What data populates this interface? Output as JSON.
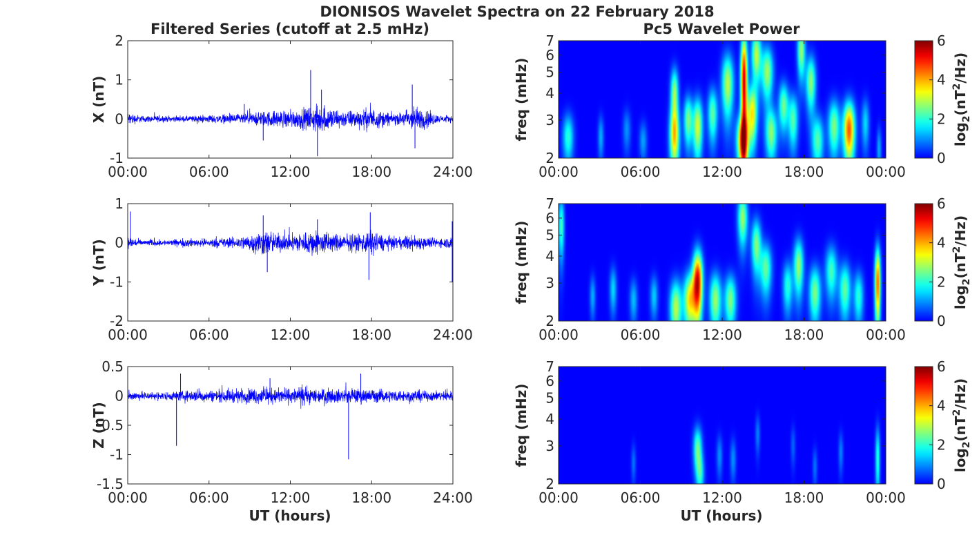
{
  "figure": {
    "title": "DIONISOS Wavelet Spectra on 22 February 2018",
    "left_title": "Filtered Series (cutoff at 2.5 mHz)",
    "right_title": "Pc5 Wavelet Power",
    "x_label": "UT (hours)"
  },
  "colorbar": {
    "label_main": "log",
    "label_sub": "2",
    "label_paren": "(nT",
    "label_sup": "2",
    "label_tail": "/Hz)",
    "ticks": [
      "0",
      "2",
      "4",
      "6"
    ],
    "colormap": "jet",
    "min_color": "#00008f",
    "max_color": "#800000"
  },
  "chart_data": [
    {
      "type": "line",
      "panel": "X",
      "ylabel": "X (nT)",
      "x_ticklabels": [
        "00:00",
        "06:00",
        "12:00",
        "18:00",
        "24:00"
      ],
      "x_range_hours": [
        0,
        24
      ],
      "ylim": [
        -1,
        2
      ],
      "y_ticklabels": [
        "2",
        "1",
        "0",
        "-1"
      ],
      "y_ticks": [
        2,
        1,
        0,
        -1
      ],
      "color": "#0000ff",
      "envelope": {
        "x_hours": [
          0,
          1,
          2,
          3,
          4,
          5,
          6,
          7,
          8,
          9,
          10,
          11,
          12,
          13,
          14,
          15,
          16,
          17,
          18,
          19,
          20,
          21,
          22,
          23,
          24
        ],
        "amplitude_nT": [
          0.25,
          0.12,
          0.12,
          0.1,
          0.1,
          0.12,
          0.14,
          0.16,
          0.18,
          0.2,
          0.28,
          0.3,
          0.32,
          0.38,
          0.48,
          0.42,
          0.3,
          0.34,
          0.4,
          0.25,
          0.2,
          0.45,
          0.35,
          0.12,
          0.12
        ]
      },
      "spikes": [
        {
          "x_hours": 13.5,
          "value_nT": 1.25
        },
        {
          "x_hours": 14.0,
          "value_nT": -0.95
        },
        {
          "x_hours": 21.0,
          "value_nT": 0.88
        },
        {
          "x_hours": 21.2,
          "value_nT": -0.75
        },
        {
          "x_hours": 8.6,
          "value_nT": 0.38
        },
        {
          "x_hours": 14.3,
          "value_nT": 0.75
        },
        {
          "x_hours": 10.0,
          "value_nT": -0.55
        }
      ]
    },
    {
      "type": "line",
      "panel": "Y",
      "ylabel": "Y (nT)",
      "x_ticklabels": [
        "00:00",
        "06:00",
        "12:00",
        "18:00",
        "24:00"
      ],
      "x_range_hours": [
        0,
        24
      ],
      "ylim": [
        -2,
        1
      ],
      "y_ticklabels": [
        "1",
        "0",
        "-1",
        "-2"
      ],
      "y_ticks": [
        1,
        0,
        -1,
        -2
      ],
      "color": "#0000ff",
      "envelope": {
        "x_hours": [
          0,
          1,
          2,
          3,
          4,
          5,
          6,
          7,
          8,
          9,
          10,
          11,
          12,
          13,
          14,
          15,
          16,
          17,
          18,
          19,
          20,
          21,
          22,
          23,
          24
        ],
        "amplitude_nT": [
          0.25,
          0.1,
          0.12,
          0.1,
          0.15,
          0.14,
          0.15,
          0.18,
          0.2,
          0.3,
          0.45,
          0.35,
          0.28,
          0.4,
          0.45,
          0.35,
          0.28,
          0.32,
          0.45,
          0.25,
          0.2,
          0.3,
          0.2,
          0.15,
          0.25
        ]
      },
      "spikes": [
        {
          "x_hours": 10.0,
          "value_nT": 0.7
        },
        {
          "x_hours": 10.3,
          "value_nT": -0.75
        },
        {
          "x_hours": 17.9,
          "value_nT": 0.78
        },
        {
          "x_hours": 17.8,
          "value_nT": -0.95
        },
        {
          "x_hours": 14.0,
          "value_nT": 0.6
        },
        {
          "x_hours": 0.2,
          "value_nT": 0.8
        },
        {
          "x_hours": 23.95,
          "value_nT": -1.0
        },
        {
          "x_hours": 23.95,
          "value_nT": 0.55
        }
      ]
    },
    {
      "type": "line",
      "panel": "Z",
      "ylabel": "Z (nT)",
      "x_ticklabels": [
        "00:00",
        "06:00",
        "12:00",
        "18:00",
        "24:00"
      ],
      "x_range_hours": [
        0,
        24
      ],
      "ylim": [
        -1.5,
        0.5
      ],
      "y_ticklabels": [
        "0.5",
        "0",
        "-0.5",
        "-1",
        "-1.5"
      ],
      "y_ticks": [
        0.5,
        0,
        -0.5,
        -1,
        -1.5
      ],
      "color": "#0000ff",
      "envelope": {
        "x_hours": [
          0,
          1,
          2,
          3,
          4,
          5,
          6,
          7,
          8,
          9,
          10,
          11,
          12,
          13,
          14,
          15,
          16,
          17,
          18,
          19,
          20,
          21,
          22,
          23,
          24
        ],
        "amplitude_nT": [
          0.12,
          0.1,
          0.1,
          0.1,
          0.12,
          0.14,
          0.14,
          0.15,
          0.16,
          0.18,
          0.2,
          0.18,
          0.18,
          0.2,
          0.18,
          0.17,
          0.16,
          0.18,
          0.17,
          0.15,
          0.14,
          0.14,
          0.13,
          0.12,
          0.12
        ]
      },
      "spikes": [
        {
          "x_hours": 3.6,
          "value_nT": -0.85
        },
        {
          "x_hours": 16.3,
          "value_nT": -1.08
        },
        {
          "x_hours": 3.9,
          "value_nT": 0.38
        },
        {
          "x_hours": 17.2,
          "value_nT": 0.38
        },
        {
          "x_hours": 10.5,
          "value_nT": 0.3
        }
      ]
    },
    {
      "type": "heatmap",
      "panel": "X",
      "ylabel": "freq (mHz)",
      "x_ticklabels": [
        "00:00",
        "06:00",
        "12:00",
        "18:00",
        "00:00"
      ],
      "x_range_hours": [
        0,
        24
      ],
      "y_scale": "log",
      "ylim": [
        2,
        7
      ],
      "y_ticklabels": [
        "7",
        "6",
        "5",
        "4",
        "3",
        "2"
      ],
      "y_ticks": [
        7,
        6,
        5,
        4,
        3,
        2
      ],
      "value_range": [
        0,
        6
      ],
      "blobs": [
        {
          "t": 0.7,
          "f": 2.5,
          "amp": 2.0,
          "w": 0.28,
          "h": 0.35
        },
        {
          "t": 3.1,
          "f": 2.5,
          "amp": 1.2,
          "w": 0.15,
          "h": 0.3
        },
        {
          "t": 5.0,
          "f": 2.7,
          "amp": 1.0,
          "w": 0.2,
          "h": 0.3
        },
        {
          "t": 6.2,
          "f": 2.4,
          "amp": 1.1,
          "w": 0.2,
          "h": 0.25
        },
        {
          "t": 8.5,
          "f": 2.5,
          "amp": 3.6,
          "w": 0.25,
          "h": 0.5
        },
        {
          "t": 8.5,
          "f": 4.0,
          "amp": 2.8,
          "w": 0.2,
          "h": 0.45
        },
        {
          "t": 9.5,
          "f": 3.0,
          "amp": 2.6,
          "w": 0.22,
          "h": 0.4
        },
        {
          "t": 10.2,
          "f": 2.8,
          "amp": 3.2,
          "w": 0.25,
          "h": 0.5
        },
        {
          "t": 11.3,
          "f": 3.2,
          "amp": 2.4,
          "w": 0.25,
          "h": 0.45
        },
        {
          "t": 12.4,
          "f": 4.4,
          "amp": 3.0,
          "w": 0.3,
          "h": 0.6
        },
        {
          "t": 13.6,
          "f": 4.5,
          "amp": 5.5,
          "w": 0.17,
          "h": 1.1
        },
        {
          "t": 13.5,
          "f": 2.4,
          "amp": 4.3,
          "w": 0.3,
          "h": 0.4
        },
        {
          "t": 14.5,
          "f": 6.0,
          "amp": 3.0,
          "w": 0.25,
          "h": 0.5
        },
        {
          "t": 14.2,
          "f": 3.2,
          "amp": 3.5,
          "w": 0.25,
          "h": 0.5
        },
        {
          "t": 15.3,
          "f": 5.0,
          "amp": 2.8,
          "w": 0.3,
          "h": 0.5
        },
        {
          "t": 15.6,
          "f": 2.6,
          "amp": 2.6,
          "w": 0.3,
          "h": 0.4
        },
        {
          "t": 16.5,
          "f": 3.5,
          "amp": 2.5,
          "w": 0.25,
          "h": 0.4
        },
        {
          "t": 17.2,
          "f": 3.0,
          "amp": 2.3,
          "w": 0.25,
          "h": 0.45
        },
        {
          "t": 17.8,
          "f": 6.3,
          "amp": 2.8,
          "w": 0.2,
          "h": 0.5
        },
        {
          "t": 18.5,
          "f": 4.5,
          "amp": 2.7,
          "w": 0.25,
          "h": 0.5
        },
        {
          "t": 19.0,
          "f": 2.4,
          "amp": 2.3,
          "w": 0.3,
          "h": 0.4
        },
        {
          "t": 20.2,
          "f": 2.8,
          "amp": 2.6,
          "w": 0.3,
          "h": 0.45
        },
        {
          "t": 21.3,
          "f": 2.7,
          "amp": 4.6,
          "w": 0.3,
          "h": 0.5
        },
        {
          "t": 22.5,
          "f": 2.9,
          "amp": 1.5,
          "w": 0.2,
          "h": 0.4
        },
        {
          "t": 23.5,
          "f": 2.2,
          "amp": 1.2,
          "w": 0.12,
          "h": 0.3
        }
      ]
    },
    {
      "type": "heatmap",
      "panel": "Y",
      "ylabel": "freq (mHz)",
      "x_ticklabels": [
        "00:00",
        "06:00",
        "12:00",
        "18:00",
        "00:00"
      ],
      "x_range_hours": [
        0,
        24
      ],
      "y_scale": "log",
      "ylim": [
        2,
        7
      ],
      "y_ticklabels": [
        "7",
        "6",
        "5",
        "4",
        "3",
        "2"
      ],
      "y_ticks": [
        7,
        6,
        5,
        4,
        3,
        2
      ],
      "value_range": [
        0,
        6
      ],
      "blobs": [
        {
          "t": 0.2,
          "f": 5.5,
          "amp": 2.2,
          "w": 0.15,
          "h": 0.6
        },
        {
          "t": 2.5,
          "f": 2.6,
          "amp": 1.2,
          "w": 0.15,
          "h": 0.3
        },
        {
          "t": 4.0,
          "f": 2.8,
          "amp": 1.5,
          "w": 0.18,
          "h": 0.35
        },
        {
          "t": 5.5,
          "f": 2.5,
          "amp": 1.3,
          "w": 0.2,
          "h": 0.3
        },
        {
          "t": 7.0,
          "f": 2.6,
          "amp": 1.4,
          "w": 0.2,
          "h": 0.3
        },
        {
          "t": 8.6,
          "f": 2.3,
          "amp": 3.0,
          "w": 0.3,
          "h": 0.45
        },
        {
          "t": 9.6,
          "f": 2.5,
          "amp": 3.5,
          "w": 0.3,
          "h": 0.45
        },
        {
          "t": 10.2,
          "f": 3.0,
          "amp": 5.5,
          "w": 0.25,
          "h": 0.6
        },
        {
          "t": 11.5,
          "f": 2.5,
          "amp": 2.8,
          "w": 0.3,
          "h": 0.45
        },
        {
          "t": 12.6,
          "f": 2.5,
          "amp": 2.6,
          "w": 0.3,
          "h": 0.4
        },
        {
          "t": 13.5,
          "f": 6.0,
          "amp": 2.8,
          "w": 0.25,
          "h": 0.5
        },
        {
          "t": 14.5,
          "f": 4.5,
          "amp": 2.6,
          "w": 0.25,
          "h": 0.5
        },
        {
          "t": 15.2,
          "f": 3.5,
          "amp": 2.4,
          "w": 0.3,
          "h": 0.45
        },
        {
          "t": 16.8,
          "f": 2.9,
          "amp": 2.0,
          "w": 0.25,
          "h": 0.4
        },
        {
          "t": 17.6,
          "f": 3.6,
          "amp": 2.8,
          "w": 0.25,
          "h": 0.5
        },
        {
          "t": 18.8,
          "f": 2.7,
          "amp": 2.6,
          "w": 0.3,
          "h": 0.45
        },
        {
          "t": 20.0,
          "f": 3.4,
          "amp": 2.2,
          "w": 0.3,
          "h": 0.45
        },
        {
          "t": 21.0,
          "f": 2.8,
          "amp": 2.4,
          "w": 0.3,
          "h": 0.45
        },
        {
          "t": 22.0,
          "f": 2.6,
          "amp": 2.0,
          "w": 0.25,
          "h": 0.4
        },
        {
          "t": 23.4,
          "f": 3.0,
          "amp": 4.5,
          "w": 0.15,
          "h": 0.7
        }
      ]
    },
    {
      "type": "heatmap",
      "panel": "Z",
      "ylabel": "freq (mHz)",
      "x_ticklabels": [
        "00:00",
        "06:00",
        "12:00",
        "18:00",
        "00:00"
      ],
      "x_range_hours": [
        0,
        24
      ],
      "y_scale": "log",
      "ylim": [
        2,
        7
      ],
      "y_ticklabels": [
        "7",
        "6",
        "5",
        "4",
        "3",
        "2"
      ],
      "y_ticks": [
        7,
        6,
        5,
        4,
        3,
        2
      ],
      "value_range": [
        0,
        6
      ],
      "blobs": [
        {
          "t": 5.5,
          "f": 2.5,
          "amp": 0.8,
          "w": 0.12,
          "h": 0.25
        },
        {
          "t": 10.2,
          "f": 2.9,
          "amp": 2.5,
          "w": 0.22,
          "h": 0.35
        },
        {
          "t": 10.4,
          "f": 2.2,
          "amp": 1.6,
          "w": 0.2,
          "h": 0.25
        },
        {
          "t": 11.8,
          "f": 2.7,
          "amp": 1.0,
          "w": 0.15,
          "h": 0.3
        },
        {
          "t": 12.8,
          "f": 2.6,
          "amp": 1.0,
          "w": 0.15,
          "h": 0.3
        },
        {
          "t": 14.6,
          "f": 3.4,
          "amp": 0.9,
          "w": 0.12,
          "h": 0.3
        },
        {
          "t": 17.2,
          "f": 3.0,
          "amp": 0.7,
          "w": 0.12,
          "h": 0.3
        },
        {
          "t": 18.8,
          "f": 2.4,
          "amp": 0.8,
          "w": 0.12,
          "h": 0.25
        },
        {
          "t": 20.7,
          "f": 2.8,
          "amp": 0.9,
          "w": 0.12,
          "h": 0.3
        },
        {
          "t": 23.4,
          "f": 2.6,
          "amp": 2.0,
          "w": 0.12,
          "h": 0.6
        }
      ]
    }
  ]
}
